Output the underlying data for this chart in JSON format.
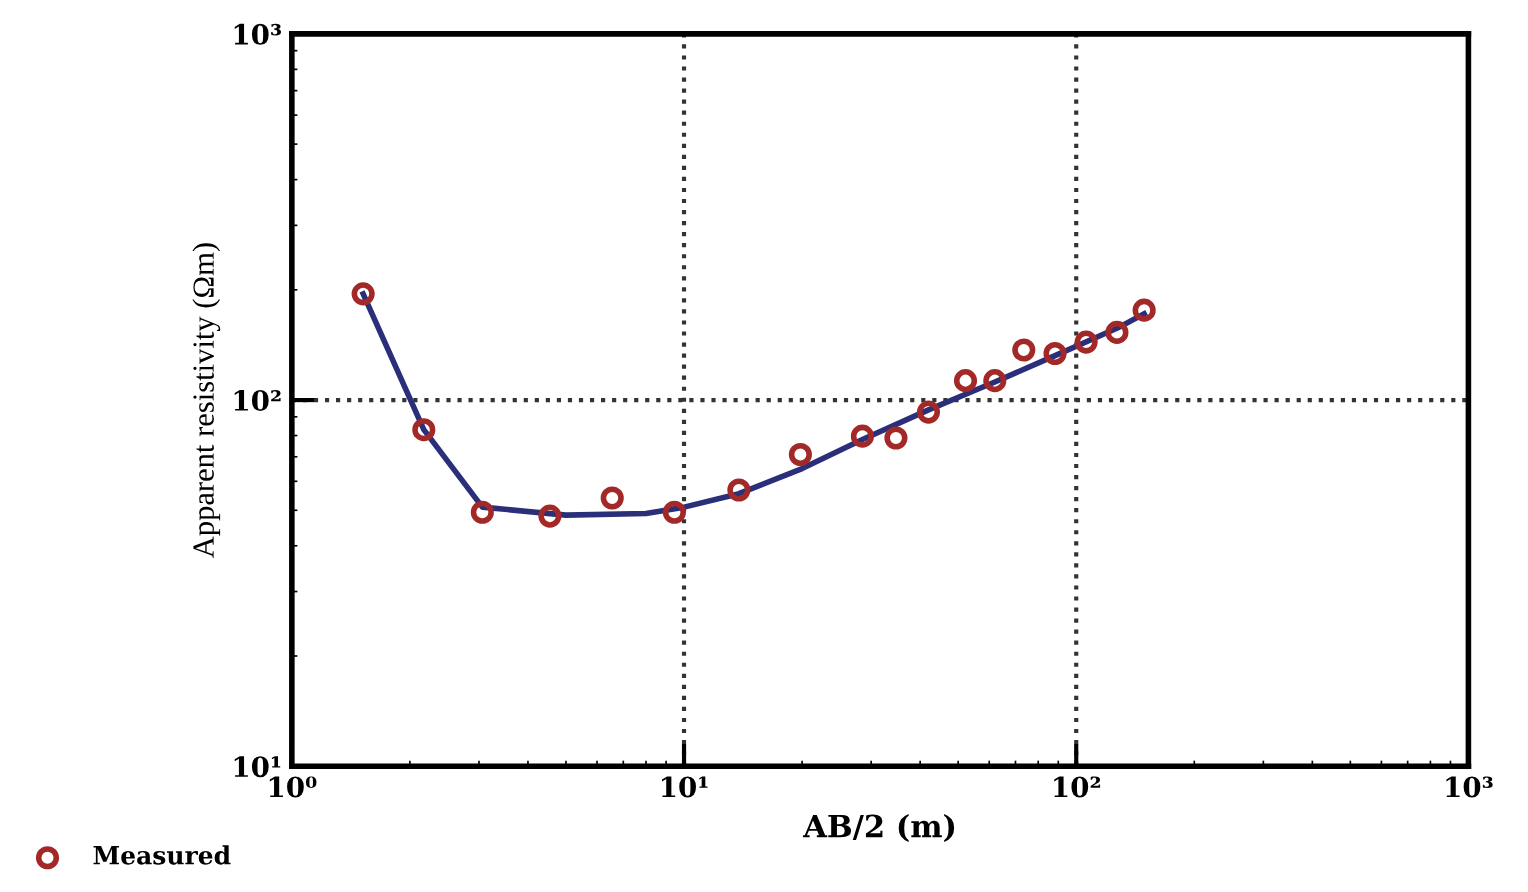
{
  "chart_data": {
    "type": "scatter",
    "xlabel": "AB/2 (m)",
    "ylabel": "Apparent resistivity (Ωm)",
    "log": "xy",
    "xlim": [
      1,
      1000
    ],
    "ylim": [
      10,
      1000
    ],
    "xticks": [
      {
        "value": 1,
        "label": "10⁰"
      },
      {
        "value": 10,
        "label": "10¹"
      },
      {
        "value": 100,
        "label": "10²"
      },
      {
        "value": 1000,
        "label": "10³"
      }
    ],
    "yticks": [
      {
        "value": 10,
        "label": "10¹"
      },
      {
        "value": 100,
        "label": "10²"
      },
      {
        "value": 1000,
        "label": "10³"
      }
    ],
    "grid": true,
    "legend": "bottom left",
    "series": [
      {
        "name": "Measured",
        "marker": "circle",
        "color": "#a32828",
        "x": [
          1.52,
          2.17,
          3.06,
          4.55,
          6.56,
          9.45,
          13.8,
          19.8,
          28.5,
          34.7,
          42,
          52.2,
          62,
          73.5,
          88.3,
          106,
          127,
          149
        ],
        "values": [
          195,
          83,
          49.4,
          48.2,
          54,
          49.4,
          56.8,
          71,
          79.7,
          78.8,
          92.7,
          113,
          113,
          137,
          134,
          144,
          153,
          176
        ]
      },
      {
        "type": "line",
        "marker": "none",
        "line_style": "solid",
        "color": "#2b2f7a",
        "x": [
          1.52,
          2.17,
          3.06,
          5,
          8,
          10,
          13.8,
          20,
          28.5,
          42,
          62,
          88,
          127,
          149
        ],
        "values": [
          195,
          83,
          51,
          48.5,
          49,
          51,
          55.5,
          65,
          78,
          94,
          112,
          132,
          157,
          172
        ]
      }
    ]
  }
}
